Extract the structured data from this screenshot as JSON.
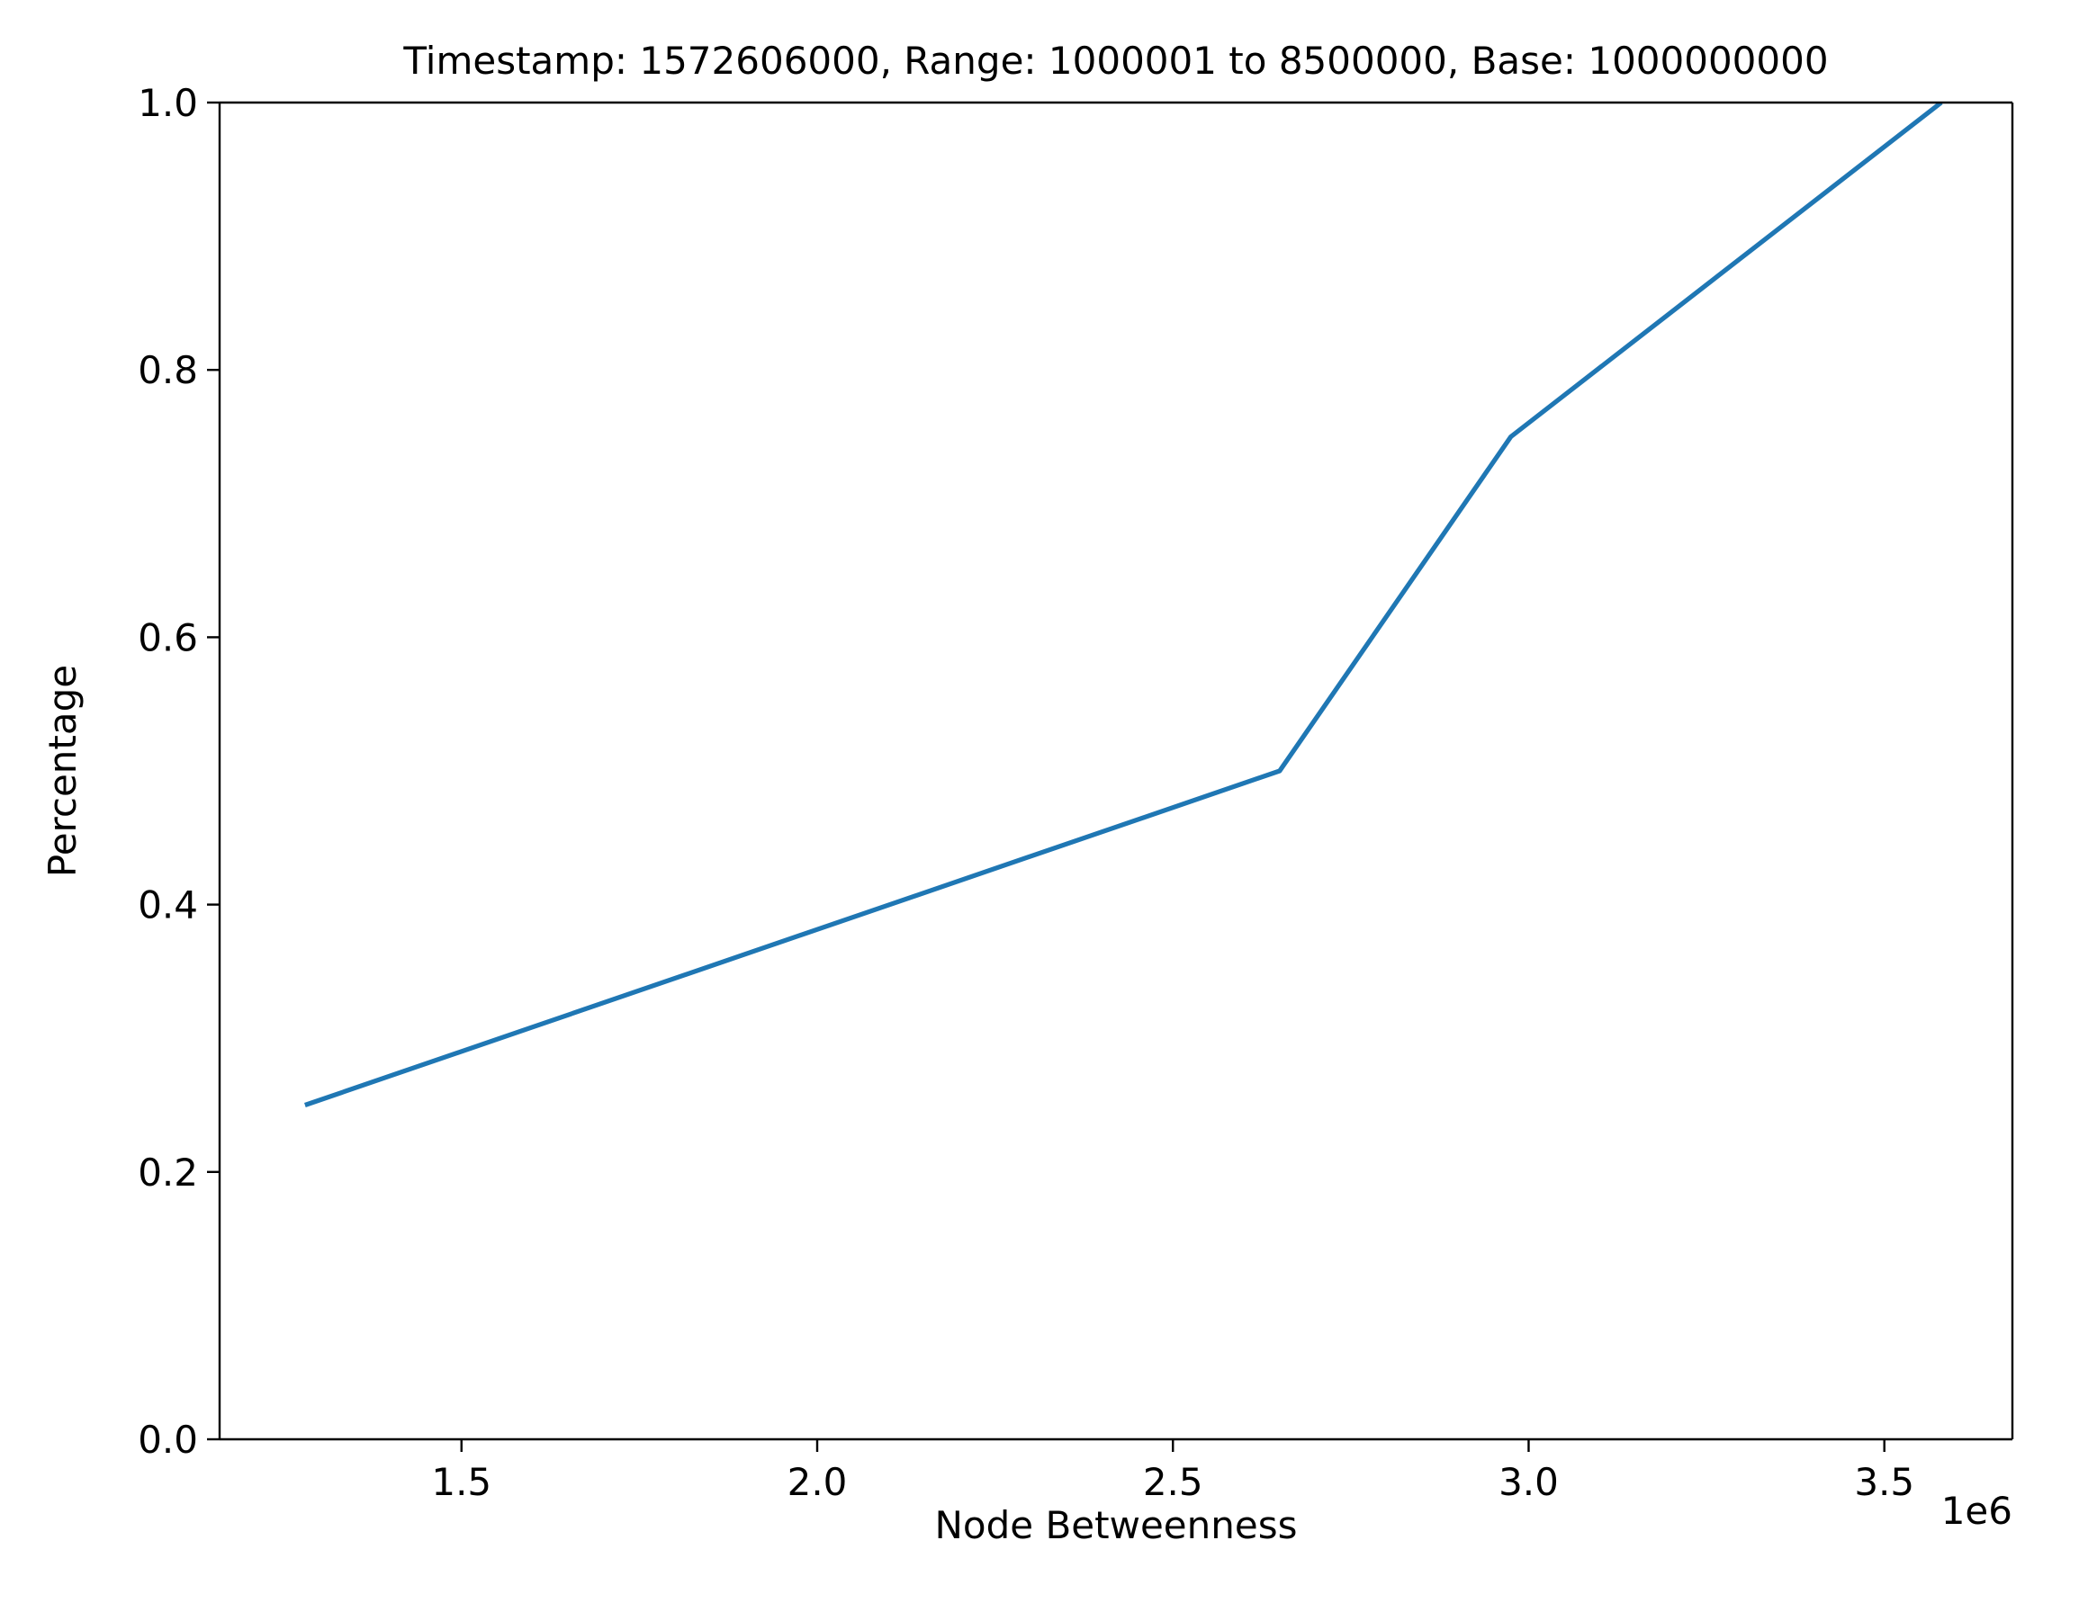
{
  "chart_data": {
    "type": "line",
    "title": "Timestamp: 1572606000, Range: 1000001 to 8500000, Base: 1000000000",
    "xlabel": "Node Betweenness",
    "ylabel": "Percentage",
    "x_offset_label": "1e6",
    "xlim": [
      1.16,
      3.68
    ],
    "ylim": [
      0.0,
      1.0
    ],
    "x_ticks": [
      1.5,
      2.0,
      2.5,
      3.0,
      3.5
    ],
    "x_tick_labels": [
      "1.5",
      "2.0",
      "2.5",
      "3.0",
      "3.5"
    ],
    "y_ticks": [
      0.0,
      0.2,
      0.4,
      0.6,
      0.8,
      1.0
    ],
    "y_tick_labels": [
      "0.0",
      "0.2",
      "0.4",
      "0.6",
      "0.8",
      "1.0"
    ],
    "grid": false,
    "series": [
      {
        "color": "#1f77b4",
        "x": [
          1.28,
          2.65,
          2.975,
          3.58
        ],
        "y": [
          0.25,
          0.5,
          0.75,
          1.0
        ]
      }
    ]
  }
}
